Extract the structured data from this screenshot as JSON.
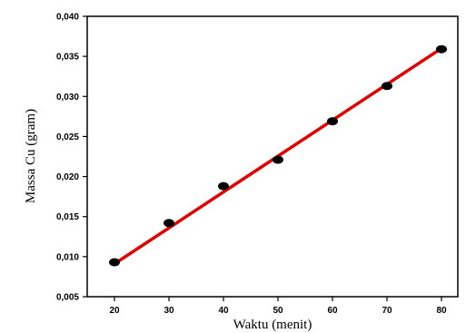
{
  "chart_data": {
    "type": "scatter",
    "title": "",
    "xlabel": "Waktu (menit)",
    "ylabel": "Massa Cu (gram)",
    "xlim": [
      15,
      83
    ],
    "ylim": [
      0.005,
      0.04
    ],
    "x_ticks": [
      20,
      30,
      40,
      50,
      60,
      70,
      80
    ],
    "x_tick_labels": [
      "20",
      "30",
      "40",
      "50",
      "60",
      "70",
      "80"
    ],
    "y_ticks": [
      0.005,
      0.01,
      0.015,
      0.02,
      0.025,
      0.03,
      0.035,
      0.04
    ],
    "y_tick_labels": [
      "0,005",
      "0,010",
      "0,015",
      "0,020",
      "0,025",
      "0,030",
      "0,035",
      "0,040"
    ],
    "grid": false,
    "legend": "none",
    "series": [
      {
        "type": "scatter",
        "color": "#000000",
        "x": [
          20,
          30,
          40,
          50,
          60,
          70,
          80
        ],
        "y": [
          0.0093,
          0.0142,
          0.0188,
          0.0221,
          0.0269,
          0.0313,
          0.0359
        ]
      },
      {
        "type": "line",
        "color": "#e00000",
        "x": [
          20,
          80
        ],
        "y": [
          0.0091,
          0.036
        ]
      }
    ]
  }
}
